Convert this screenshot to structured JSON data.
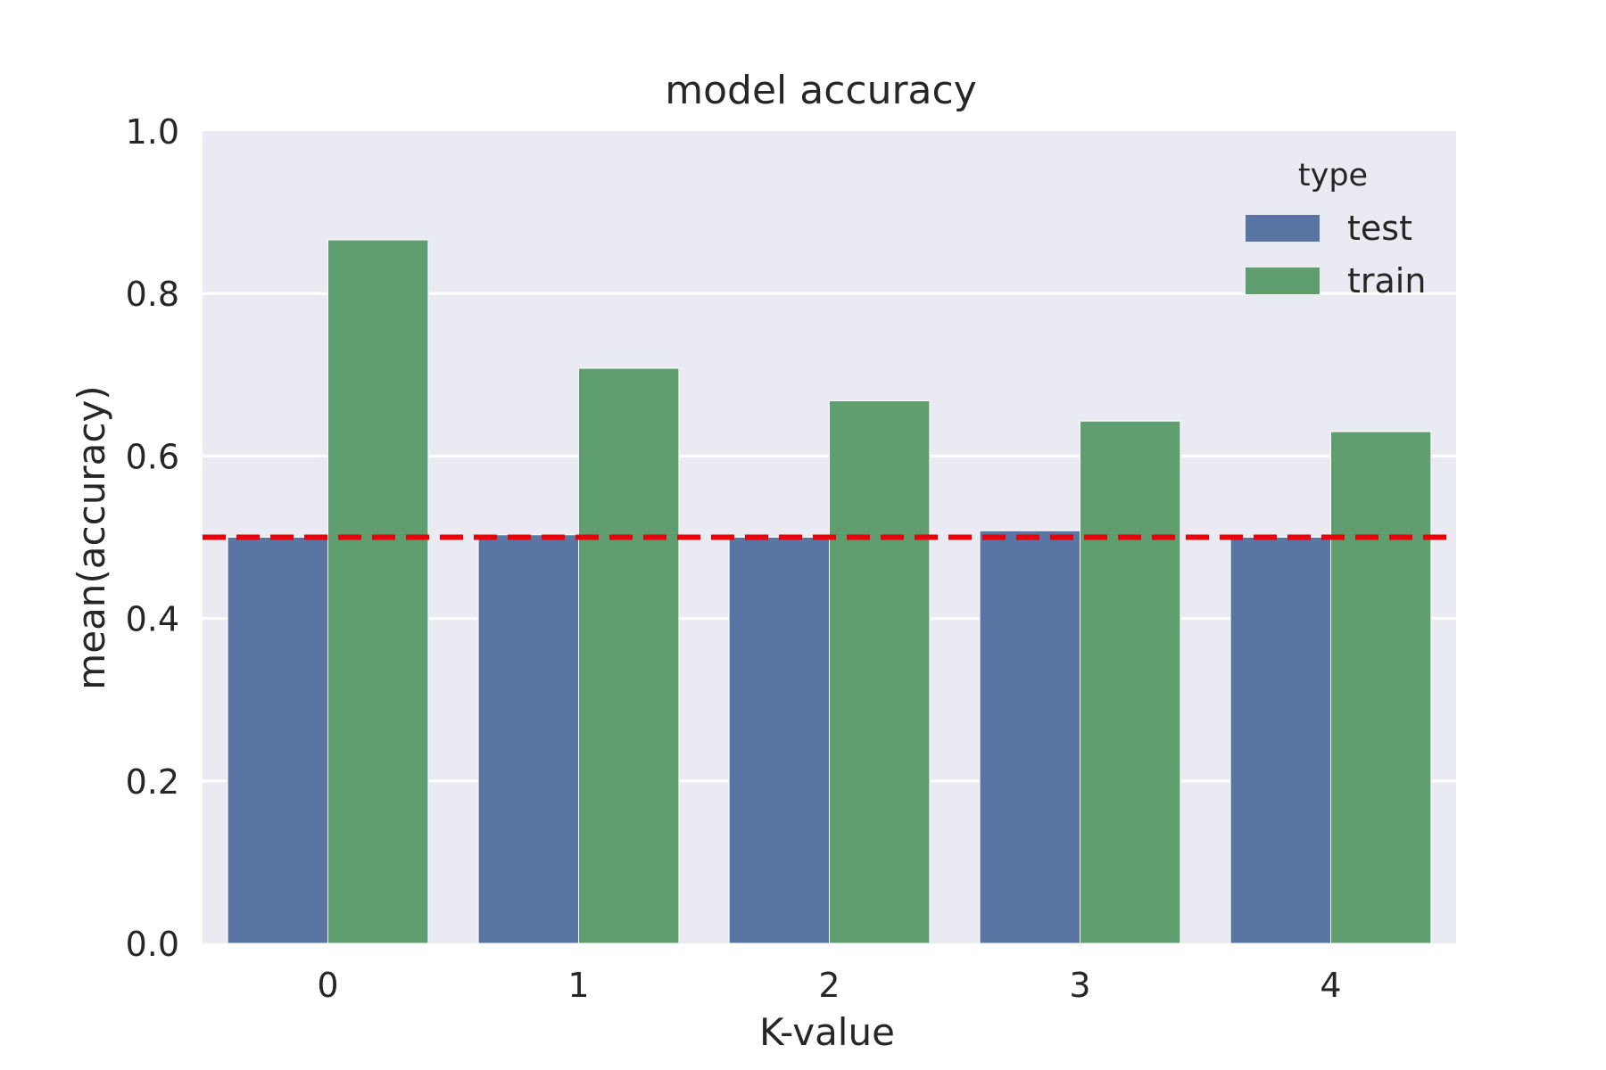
{
  "chart_data": {
    "type": "bar",
    "title": "model accuracy",
    "xlabel": "K-value",
    "ylabel": "mean(accuracy)",
    "categories": [
      "0",
      "1",
      "2",
      "3",
      "4"
    ],
    "series": [
      {
        "name": "test",
        "values": [
          0.5,
          0.503,
          0.5,
          0.508,
          0.5
        ]
      },
      {
        "name": "train",
        "values": [
          0.866,
          0.708,
          0.668,
          0.643,
          0.63
        ]
      }
    ],
    "ylim": [
      0,
      1.0
    ],
    "yticks": [
      "0.0",
      "0.2",
      "0.4",
      "0.6",
      "0.8",
      "1.0"
    ],
    "grid": "y",
    "legend": {
      "title": "type",
      "placement": "top-right",
      "entries": [
        "test",
        "train"
      ]
    },
    "reference_line": {
      "y": 0.5,
      "style": "dashed"
    }
  },
  "colors": {
    "plot_background": "#EAEAF2",
    "grid": "#FFFFFF",
    "text": "#262626",
    "series": [
      "#5975A4",
      "#5F9E6E"
    ],
    "reference_line": "#E8000B"
  }
}
